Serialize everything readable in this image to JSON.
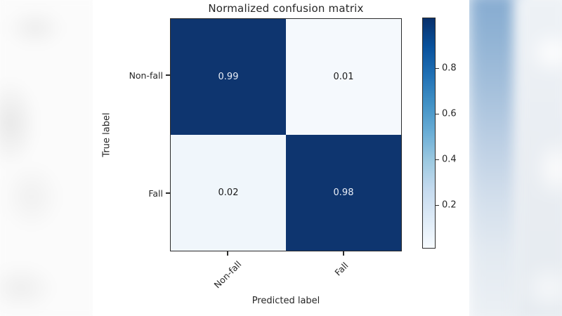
{
  "chart_data": {
    "type": "heatmap",
    "title": "Normalized confusion matrix",
    "xlabel": "Predicted label",
    "ylabel": "True label",
    "x_categories": [
      "Non-fall",
      "Fall"
    ],
    "y_categories": [
      "Non-fall",
      "Fall"
    ],
    "matrix": [
      [
        "0.99",
        "0.01"
      ],
      [
        "0.02",
        "0.98"
      ]
    ],
    "colormap": "Blues",
    "colorbar_ticks": [
      "0.8",
      "0.6",
      "0.4",
      "0.2"
    ],
    "legend_position": "right-colorbar",
    "grid": "off"
  },
  "colors": {
    "cell_dark": "#0e356f",
    "cell_light_1": "#f5f9fd",
    "cell_light_2": "#f0f6fb",
    "text_on_dark": "#e9eef7",
    "text_on_light": "#1a1a1a",
    "colorbar_top": "#08306b",
    "colorbar_bottom": "#f7fbff",
    "axis_line": "#2b2b2b",
    "bg_band_blue": "#86abd1"
  }
}
